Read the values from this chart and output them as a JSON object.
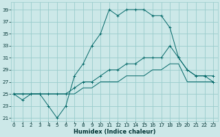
{
  "title": "",
  "xlabel": "Humidex (Indice chaleur)",
  "bg_color": "#cce8e8",
  "grid_color": "#99cccc",
  "line_color": "#006666",
  "x_ticks": [
    0,
    1,
    2,
    3,
    4,
    5,
    6,
    7,
    8,
    9,
    10,
    11,
    12,
    13,
    14,
    15,
    16,
    17,
    18,
    19,
    20,
    21,
    22,
    23
  ],
  "y_ticks": [
    21,
    23,
    25,
    27,
    29,
    31,
    33,
    35,
    37,
    39
  ],
  "ylim": [
    20.5,
    40.2
  ],
  "xlim": [
    -0.3,
    23.5
  ],
  "series1": [
    25,
    24,
    25,
    25,
    23,
    21,
    23,
    28,
    30,
    33,
    35,
    39,
    38,
    39,
    39,
    39,
    38,
    38,
    36,
    31,
    29,
    28,
    28,
    28
  ],
  "series2": [
    25,
    25,
    25,
    25,
    25,
    25,
    25,
    26,
    27,
    27,
    28,
    29,
    29,
    30,
    30,
    31,
    31,
    31,
    33,
    31,
    29,
    28,
    28,
    27
  ],
  "series3": [
    25,
    25,
    25,
    25,
    25,
    25,
    25,
    25,
    26,
    26,
    27,
    27,
    27,
    28,
    28,
    28,
    29,
    29,
    30,
    30,
    27,
    27,
    27,
    27
  ],
  "xlabel_fontsize": 6.0,
  "tick_fontsize": 5.2,
  "linewidth": 0.7,
  "markersize": 2.5
}
